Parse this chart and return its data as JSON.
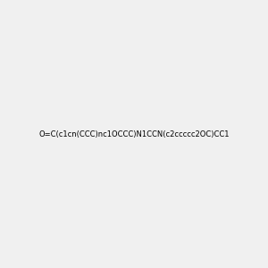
{
  "smiles": "O=C(c1cn(CCC)nc1OCCC)N1CCN(c2ccccc2OC)CC1",
  "image_size": 300,
  "background_color": "#f0f0f0",
  "atom_color_map": {
    "N": "#0000ff",
    "O": "#ff0000",
    "C": "#000000"
  },
  "title": "",
  "bond_width": 1.5,
  "font_size": 12
}
